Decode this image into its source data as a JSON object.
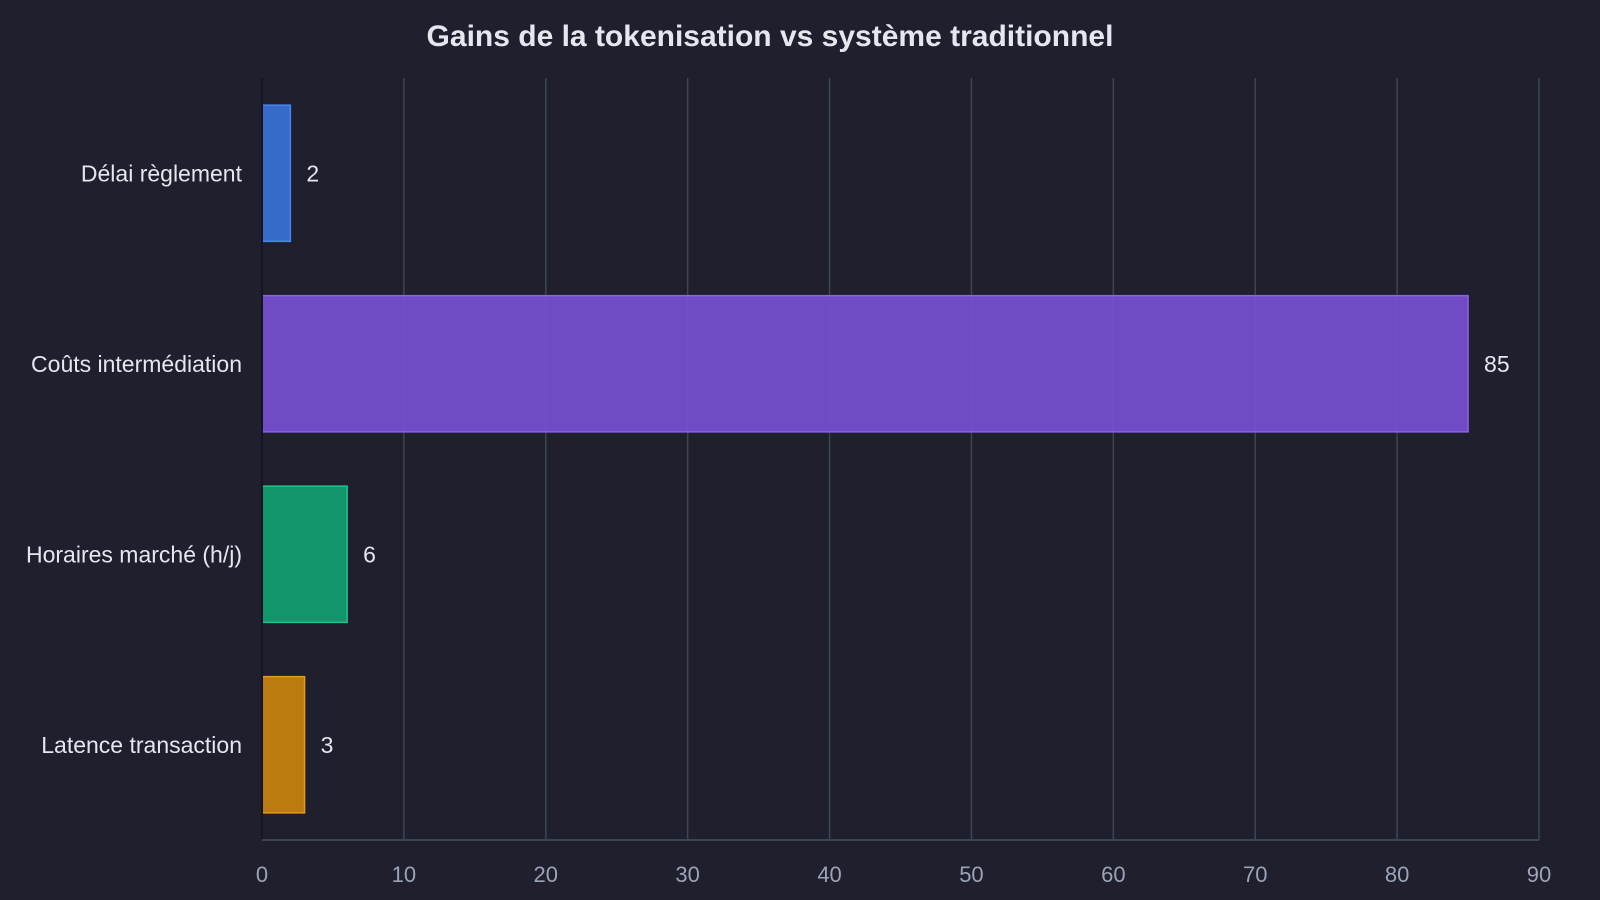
{
  "chart_data": {
    "type": "bar",
    "orientation": "horizontal",
    "title": "Gains de la tokenisation vs système traditionnel",
    "xlabel": "",
    "ylabel": "",
    "categories": [
      "Délai règlement",
      "Coûts intermédiation",
      "Horaires marché (h/j)",
      "Latence transaction"
    ],
    "values": [
      2,
      85,
      6,
      3
    ],
    "colors": [
      "#3a72d8",
      "#7650d0",
      "#12a071",
      "#c9830f"
    ],
    "border_colors": [
      "#4a86f0",
      "#8a62ee",
      "#1ec48a",
      "#e69a16"
    ],
    "xlim": [
      0,
      90
    ],
    "xticks": [
      0,
      10,
      20,
      30,
      40,
      50,
      60,
      70,
      80,
      90
    ],
    "grid": true,
    "legend": "none"
  }
}
